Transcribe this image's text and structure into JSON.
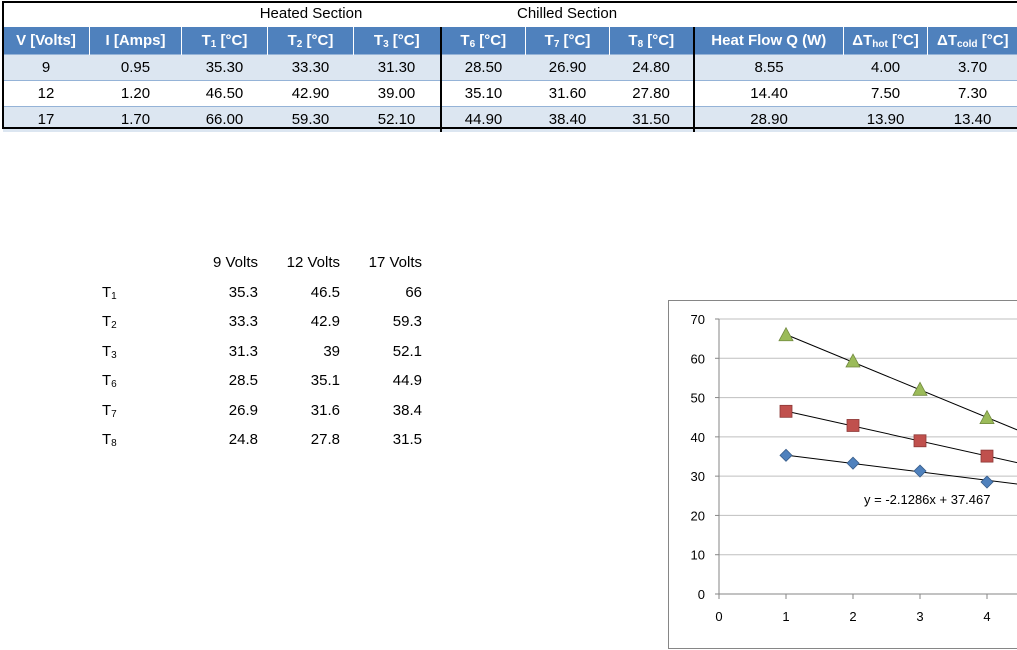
{
  "top_table": {
    "sections": {
      "heated": "Heated Section",
      "chilled": "Chilled Section"
    },
    "headers": [
      "V [Volts]",
      "I [Amps]",
      "T1 [°C]",
      "T2 [°C]",
      "T3 [°C]",
      "T6 [°C]",
      "T7 [°C]",
      "T8 [°C]",
      "Heat Flow Q (W)",
      "ΔThot [°C]",
      "ΔTcold [°C]"
    ],
    "rows": [
      [
        "9",
        "0.95",
        "35.30",
        "33.30",
        "31.30",
        "28.50",
        "26.90",
        "24.80",
        "8.55",
        "4.00",
        "3.70"
      ],
      [
        "12",
        "1.20",
        "46.50",
        "42.90",
        "39.00",
        "35.10",
        "31.60",
        "27.80",
        "14.40",
        "7.50",
        "7.30"
      ],
      [
        "17",
        "1.70",
        "66.00",
        "59.30",
        "52.10",
        "44.90",
        "38.40",
        "31.50",
        "28.90",
        "13.90",
        "13.40"
      ]
    ]
  },
  "summary_table": {
    "columns": [
      "9 Volts",
      "12 Volts",
      "17 Volts"
    ],
    "rows": [
      {
        "label": "T1",
        "values": [
          "35.3",
          "46.5",
          "66"
        ]
      },
      {
        "label": "T2",
        "values": [
          "33.3",
          "42.9",
          "59.3"
        ]
      },
      {
        "label": "T3",
        "values": [
          "31.3",
          "39",
          "52.1"
        ]
      },
      {
        "label": "T6",
        "values": [
          "28.5",
          "35.1",
          "44.9"
        ]
      },
      {
        "label": "T7",
        "values": [
          "26.9",
          "31.6",
          "38.4"
        ]
      },
      {
        "label": "T8",
        "values": [
          "24.8",
          "27.8",
          "31.5"
        ]
      }
    ]
  },
  "chart_data": {
    "type": "scatter",
    "xlim": [
      0,
      4
    ],
    "ylim": [
      0,
      70
    ],
    "x_ticks": [
      "0",
      "1",
      "2",
      "3",
      "4"
    ],
    "y_ticks": [
      "0",
      "10",
      "20",
      "30",
      "40",
      "50",
      "60",
      "70"
    ],
    "grid": true,
    "series": [
      {
        "marker": "diamond",
        "color": "#4f81bd",
        "x": [
          1,
          2,
          3,
          4
        ],
        "y": [
          35.3,
          33.3,
          31.3,
          28.5
        ],
        "trend": {
          "slope": -2.1286,
          "intercept": 37.467
        }
      },
      {
        "marker": "square",
        "color": "#c0504d",
        "x": [
          1,
          2,
          3,
          4
        ],
        "y": [
          46.5,
          42.9,
          39.0,
          35.1
        ],
        "trend": {
          "slope": -3.8,
          "intercept": 50.35
        }
      },
      {
        "marker": "triangle",
        "color": "#9bbb59",
        "x": [
          1,
          2,
          3,
          4
        ],
        "y": [
          66.0,
          59.3,
          52.1,
          44.9
        ],
        "trend": {
          "slope": -7.04,
          "intercept": 73.1
        }
      }
    ],
    "annotation": "y = -2.1286x + 37.467"
  }
}
